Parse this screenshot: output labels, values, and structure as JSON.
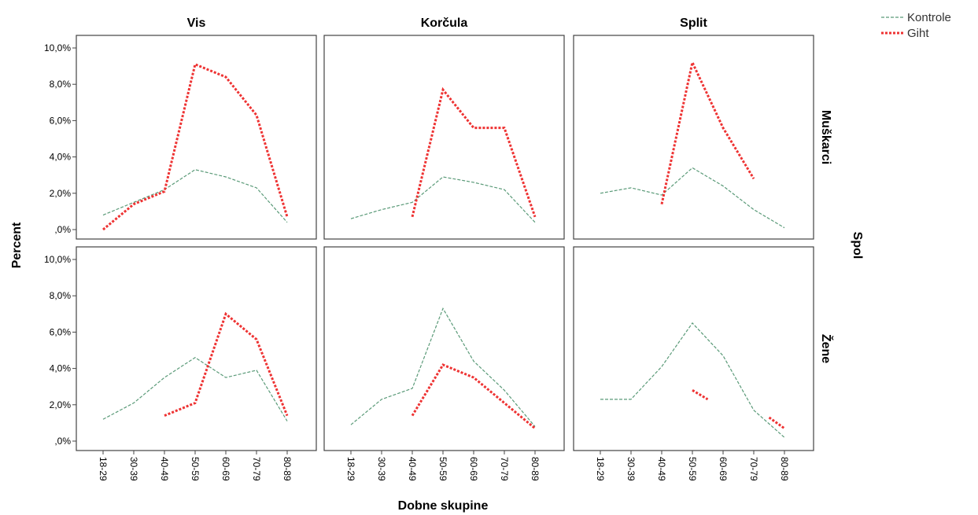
{
  "chart_data": {
    "type": "line",
    "title": "",
    "xlabel": "Dobne skupine",
    "ylabel": "Percent",
    "facet_row_title": "Spol",
    "ylim": [
      0,
      10
    ],
    "y_tick_labels": [
      ",0%",
      "2,0%",
      "4,0%",
      "6,0%",
      "8,0%",
      "10,0%"
    ],
    "y_ticks": [
      0,
      2,
      4,
      6,
      8,
      10
    ],
    "categories": [
      "18-29",
      "30-39",
      "40-49",
      "50-59",
      "60-69",
      "70-79",
      "80-89"
    ],
    "columns": [
      "Vis",
      "Korčula",
      "Split"
    ],
    "rows": [
      "Muškarci",
      "Žene"
    ],
    "legend": {
      "placement": "top-right",
      "entries": [
        {
          "name": "Kontrole",
          "color": "#5a9a78",
          "style": "dashed-thin"
        },
        {
          "name": "Giht",
          "color": "#ee3333",
          "style": "dotted-thick"
        }
      ]
    },
    "panels": [
      {
        "row": "Muškarci",
        "column": "Vis",
        "series": [
          {
            "name": "Kontrole",
            "values": [
              0.8,
              1.5,
              2.2,
              3.3,
              2.9,
              2.3,
              0.4
            ]
          },
          {
            "name": "Giht",
            "values": [
              0.0,
              1.4,
              2.1,
              9.1,
              8.4,
              6.3,
              0.7
            ]
          }
        ]
      },
      {
        "row": "Muškarci",
        "column": "Korčula",
        "series": [
          {
            "name": "Kontrole",
            "values": [
              0.6,
              1.1,
              1.5,
              2.9,
              2.6,
              2.2,
              0.4
            ]
          },
          {
            "name": "Giht",
            "values": [
              null,
              null,
              0.7,
              7.7,
              5.6,
              5.6,
              0.7
            ]
          }
        ]
      },
      {
        "row": "Muškarci",
        "column": "Split",
        "series": [
          {
            "name": "Kontrole",
            "values": [
              2.0,
              2.3,
              1.9,
              3.4,
              2.4,
              1.1,
              0.1
            ]
          },
          {
            "name": "Giht",
            "values": [
              null,
              null,
              1.4,
              9.2,
              5.6,
              2.8,
              null
            ]
          }
        ]
      },
      {
        "row": "Žene",
        "column": "Vis",
        "series": [
          {
            "name": "Kontrole",
            "values": [
              1.2,
              2.1,
              3.5,
              4.6,
              3.5,
              3.9,
              1.1
            ]
          },
          {
            "name": "Giht",
            "values": [
              null,
              null,
              1.4,
              2.1,
              7.0,
              5.6,
              1.4
            ]
          }
        ]
      },
      {
        "row": "Žene",
        "column": "Korčula",
        "series": [
          {
            "name": "Kontrole",
            "values": [
              0.9,
              2.3,
              2.9,
              7.3,
              4.4,
              2.8,
              0.8
            ]
          },
          {
            "name": "Giht",
            "values": [
              null,
              null,
              1.4,
              4.2,
              3.5,
              2.1,
              0.7
            ]
          }
        ]
      },
      {
        "row": "Žene",
        "column": "Split",
        "series": [
          {
            "name": "Kontrole",
            "values": [
              2.3,
              2.3,
              4.1,
              6.5,
              4.7,
              1.7,
              0.2
            ]
          },
          {
            "name": "Giht",
            "values": [
              null,
              null,
              null,
              2.8,
              null,
              1.3,
              null
            ],
            "fragments": [
              {
                "x": [
                  3,
                  3.5
                ],
                "y": [
                  2.8,
                  2.3
                ]
              },
              {
                "x": [
                  5.5,
                  6
                ],
                "y": [
                  1.3,
                  0.7
                ]
              }
            ]
          }
        ]
      }
    ]
  }
}
